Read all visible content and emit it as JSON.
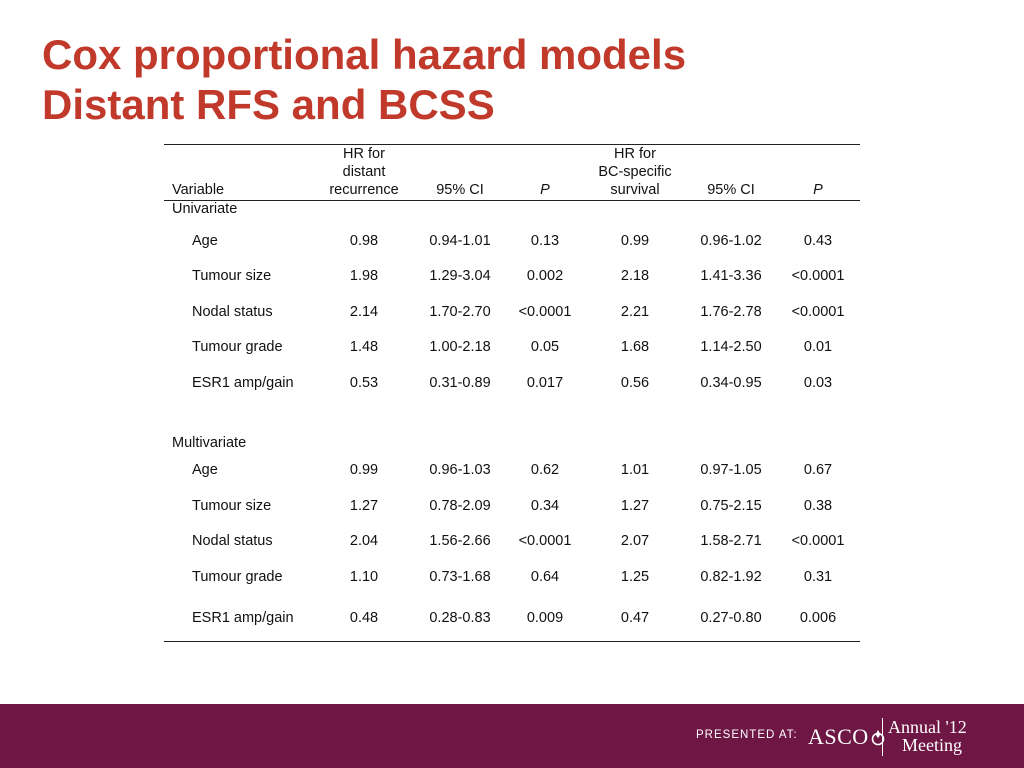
{
  "title": {
    "line1": "Cox proportional hazard models",
    "line2": "Distant RFS and BCSS"
  },
  "table": {
    "headers": {
      "variable": "Variable",
      "hr1": [
        "HR for",
        "distant",
        "recurrence"
      ],
      "ci1": "95% CI",
      "p1": "P",
      "hr2": [
        "HR for",
        "BC-specific",
        "survival"
      ],
      "ci2": "95% CI",
      "p2": "P"
    },
    "univariate_label": "Univariate",
    "univariate": [
      {
        "variable": "Age",
        "hr1": "0.98",
        "ci1": "0.94-1.01",
        "p1": "0.13",
        "hr2": "0.99",
        "ci2": "0.96-1.02",
        "p2": "0.43"
      },
      {
        "variable": "Tumour size",
        "hr1": "1.98",
        "ci1": "1.29-3.04",
        "p1": "0.002",
        "hr2": "2.18",
        "ci2": "1.41-3.36",
        "p2": "<0.0001"
      },
      {
        "variable": "Nodal status",
        "hr1": "2.14",
        "ci1": "1.70-2.70",
        "p1": "<0.0001",
        "hr2": "2.21",
        "ci2": "1.76-2.78",
        "p2": "<0.0001"
      },
      {
        "variable": "Tumour grade",
        "hr1": "1.48",
        "ci1": "1.00-2.18",
        "p1": "0.05",
        "hr2": "1.68",
        "ci2": "1.14-2.50",
        "p2": "0.01"
      },
      {
        "variable": "ESR1 amp/gain",
        "hr1": "0.53",
        "ci1": "0.31-0.89",
        "p1": "0.017",
        "hr2": "0.56",
        "ci2": "0.34-0.95",
        "p2": "0.03"
      }
    ],
    "multivariate_label": "Multivariate",
    "multivariate": [
      {
        "variable": "Age",
        "hr1": "0.99",
        "ci1": "0.96-1.03",
        "p1": "0.62",
        "hr2": "1.01",
        "ci2": "0.97-1.05",
        "p2": "0.67"
      },
      {
        "variable": "Tumour size",
        "hr1": "1.27",
        "ci1": "0.78-2.09",
        "p1": "0.34",
        "hr2": "1.27",
        "ci2": "0.75-2.15",
        "p2": "0.38"
      },
      {
        "variable": "Nodal status",
        "hr1": "2.04",
        "ci1": "1.56-2.66",
        "p1": "<0.0001",
        "hr2": "2.07",
        "ci2": "1.58-2.71",
        "p2": "<0.0001"
      },
      {
        "variable": "Tumour grade",
        "hr1": "1.10",
        "ci1": "0.73-1.68",
        "p1": "0.64",
        "hr2": "1.25",
        "ci2": "0.82-1.92",
        "p2": "0.31"
      },
      {
        "variable": "ESR1 amp/gain",
        "hr1": "0.48",
        "ci1": "0.28-0.83",
        "p1": "0.009",
        "hr2": "0.47",
        "ci2": "0.27-0.80",
        "p2": "0.006"
      }
    ]
  },
  "footer": {
    "presented_at": "PRESENTED AT:",
    "org": "ASCO",
    "meeting_line1": "Annual '12",
    "meeting_line2": "Meeting"
  },
  "colors": {
    "title": "#c0392b",
    "footer_bg": "#6e1644"
  }
}
